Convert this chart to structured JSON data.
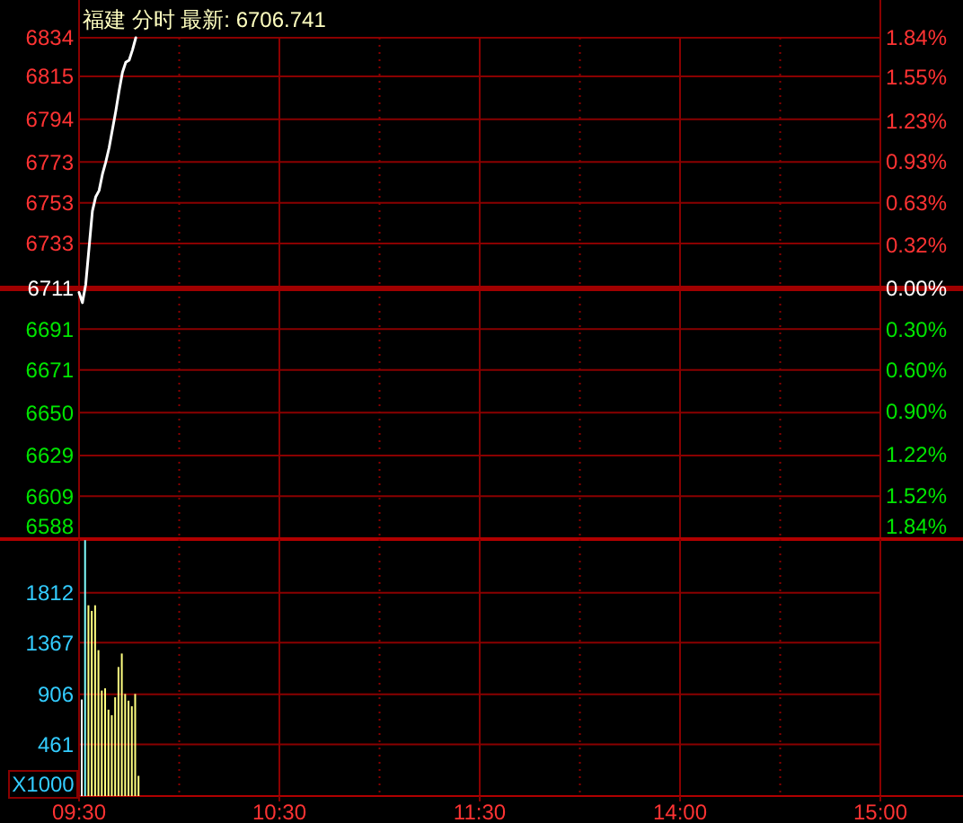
{
  "chart_data": [
    {
      "type": "line",
      "title": "福建 分时 最新: 6706.741",
      "categories": [
        null,
        null,
        null,
        null,
        null,
        null,
        null,
        null,
        null,
        null,
        null,
        null,
        null,
        null,
        null,
        null,
        null,
        null,
        null,
        null,
        null,
        null,
        null,
        null,
        null,
        null,
        null,
        null,
        null,
        null,
        null,
        null,
        null,
        null,
        null,
        null,
        null,
        null,
        null,
        null,
        null,
        null,
        null,
        null,
        null,
        null,
        null,
        null,
        null,
        null,
        null,
        null,
        null,
        null,
        null,
        null,
        null,
        null,
        null,
        null,
        null,
        null,
        null,
        null,
        null,
        null,
        null,
        null,
        null,
        null,
        null,
        null,
        null,
        null,
        null,
        null,
        null,
        null,
        null,
        null,
        null,
        null,
        null,
        null,
        null,
        null,
        null,
        null,
        null,
        null,
        null,
        null,
        null,
        null,
        null,
        null,
        null,
        null,
        null,
        null,
        null,
        null,
        null,
        null,
        null,
        null,
        null,
        null,
        null,
        null,
        null,
        null,
        null,
        null,
        null,
        null,
        null,
        null,
        null,
        null,
        null,
        null,
        null,
        null,
        null,
        null,
        null,
        null,
        null,
        null,
        null,
        null,
        null,
        null,
        null,
        null,
        null,
        null,
        null,
        null,
        null,
        null,
        null,
        null,
        null,
        null,
        null,
        null,
        null,
        null,
        null,
        null,
        null,
        null,
        null,
        null,
        null,
        null,
        null,
        null,
        null,
        null,
        null,
        null,
        null,
        null,
        null,
        null,
        null,
        null,
        null,
        null,
        null,
        null,
        null,
        null,
        null,
        null,
        null,
        null,
        null,
        null,
        null,
        null,
        null,
        null,
        null,
        null,
        null,
        null,
        null,
        null,
        null,
        null,
        null,
        null,
        null,
        null,
        null,
        null,
        null,
        null,
        null,
        null,
        null,
        null,
        null,
        null,
        null,
        null,
        null,
        null,
        null,
        null,
        null,
        null,
        null,
        null,
        null,
        null,
        null,
        null,
        null,
        null,
        null,
        null,
        null,
        null,
        null,
        null,
        null,
        null,
        null,
        null,
        null,
        null,
        null,
        null,
        null,
        null,
        null
      ],
      "series": [
        {
          "color": "#ffffff",
          "values": [
            6709,
            6704,
            6713,
            6731,
            6749,
            6756,
            6759,
            6767,
            6773,
            6780,
            6789,
            6798,
            6808,
            6817,
            6822,
            6823,
            6828,
            6834,
            null,
            null,
            null,
            null,
            null,
            null,
            null,
            null,
            null,
            null,
            null,
            null,
            null,
            null,
            null,
            null,
            null,
            null,
            null,
            null,
            null,
            null,
            null,
            null,
            null,
            null,
            null,
            null,
            null,
            null,
            null,
            null,
            null,
            null,
            null,
            null,
            null,
            null,
            null,
            null,
            null,
            null,
            null,
            null,
            null,
            null,
            null,
            null,
            null,
            null,
            null,
            null,
            null,
            null,
            null,
            null,
            null,
            null,
            null,
            null,
            null,
            null,
            null,
            null,
            null,
            null,
            null,
            null,
            null,
            null,
            null,
            null,
            null,
            null,
            null,
            null,
            null,
            null,
            null,
            null,
            null,
            null,
            null,
            null,
            null,
            null,
            null,
            null,
            null,
            null,
            null,
            null,
            null,
            null,
            null,
            null,
            null,
            null,
            null,
            null,
            null,
            null,
            null,
            null,
            null,
            null,
            null,
            null,
            null,
            null,
            null,
            null,
            null,
            null,
            null,
            null,
            null,
            null,
            null,
            null,
            null,
            null,
            null,
            null,
            null,
            null,
            null,
            null,
            null,
            null,
            null,
            null,
            null,
            null,
            null,
            null,
            null,
            null,
            null,
            null,
            null,
            null,
            null,
            null,
            null,
            null,
            null,
            null,
            null,
            null,
            null,
            null,
            null,
            null,
            null,
            null,
            null,
            null,
            null,
            null,
            null,
            null,
            null,
            null,
            null,
            null,
            null,
            null,
            null,
            null,
            null,
            null,
            null,
            null,
            null,
            null,
            null,
            null,
            null,
            null,
            null,
            null,
            null,
            null,
            null,
            null,
            null,
            null,
            null,
            null,
            null,
            null,
            null,
            null,
            null,
            null,
            null,
            null,
            null,
            null,
            null,
            null,
            null,
            null,
            null,
            null,
            null,
            null,
            null,
            null,
            null,
            null,
            null,
            null,
            null,
            null,
            null,
            null,
            null,
            null,
            null,
            null,
            null
          ]
        }
      ],
      "ylim": [
        6588,
        6834
      ],
      "yticks": [
        6588,
        6609,
        6629,
        6650,
        6671,
        6691,
        6711,
        6733,
        6753,
        6773,
        6794,
        6815,
        6834
      ],
      "y2lim": [
        -1.84,
        1.84
      ],
      "y2ticks": [
        {
          "value": -1.84,
          "label": "1.84%"
        },
        {
          "value": -1.52,
          "label": "1.52%"
        },
        {
          "value": -1.22,
          "label": "1.22%"
        },
        {
          "value": -0.9,
          "label": "0.90%"
        },
        {
          "value": -0.6,
          "label": "0.60%"
        },
        {
          "value": -0.3,
          "label": "0.30%"
        },
        {
          "value": 0,
          "label": "0.00%"
        },
        {
          "value": 0.32,
          "label": "0.32%"
        },
        {
          "value": 0.63,
          "label": "0.63%"
        },
        {
          "value": 0.93,
          "label": "0.93%"
        },
        {
          "value": 1.23,
          "label": "1.23%"
        },
        {
          "value": 1.55,
          "label": "1.55%"
        },
        {
          "value": 1.84,
          "label": "1.84%"
        }
      ],
      "ref_lines": [
        {
          "axis": "y",
          "value": 6711
        }
      ],
      "grid": true,
      "tick_labels": "y"
    },
    {
      "type": "bar",
      "categories": [
        "09:30",
        null,
        null,
        null,
        null,
        null,
        null,
        null,
        null,
        null,
        null,
        null,
        null,
        null,
        null,
        null,
        null,
        null,
        null,
        null,
        null,
        null,
        null,
        null,
        null,
        null,
        null,
        null,
        null,
        null,
        null,
        null,
        null,
        null,
        null,
        null,
        null,
        null,
        null,
        null,
        null,
        null,
        null,
        null,
        null,
        null,
        null,
        null,
        null,
        null,
        null,
        null,
        null,
        null,
        null,
        null,
        null,
        null,
        null,
        null,
        "10:30",
        null,
        null,
        null,
        null,
        null,
        null,
        null,
        null,
        null,
        null,
        null,
        null,
        null,
        null,
        null,
        null,
        null,
        null,
        null,
        null,
        null,
        null,
        null,
        null,
        null,
        null,
        null,
        null,
        null,
        null,
        null,
        null,
        null,
        null,
        null,
        null,
        null,
        null,
        null,
        null,
        null,
        null,
        null,
        null,
        null,
        null,
        null,
        null,
        null,
        null,
        null,
        null,
        null,
        null,
        null,
        null,
        null,
        null,
        null,
        "11:30",
        null,
        null,
        null,
        null,
        null,
        null,
        null,
        null,
        null,
        null,
        null,
        null,
        null,
        null,
        null,
        null,
        null,
        null,
        null,
        null,
        null,
        null,
        null,
        null,
        null,
        null,
        null,
        null,
        null,
        null,
        null,
        null,
        null,
        null,
        null,
        null,
        null,
        null,
        null,
        null,
        null,
        null,
        null,
        null,
        null,
        null,
        null,
        null,
        null,
        null,
        null,
        null,
        null,
        null,
        null,
        null,
        null,
        null,
        null,
        "14:00",
        null,
        null,
        null,
        null,
        null,
        null,
        null,
        null,
        null,
        null,
        null,
        null,
        null,
        null,
        null,
        null,
        null,
        null,
        null,
        null,
        null,
        null,
        null,
        null,
        null,
        null,
        null,
        null,
        null,
        null,
        null,
        null,
        null,
        null,
        null,
        null,
        null,
        null,
        null,
        null,
        null,
        null,
        null,
        null,
        null,
        null,
        null,
        null,
        null,
        null,
        null,
        null,
        null,
        null,
        null,
        null,
        null,
        null,
        null,
        "15:00"
      ],
      "values": [
        860,
        2280,
        1700,
        1650,
        1700,
        1300,
        940,
        960,
        770,
        720,
        880,
        1150,
        1270,
        910,
        850,
        800,
        910,
        180,
        null,
        null,
        null,
        null,
        null,
        null,
        null,
        null,
        null,
        null,
        null,
        null,
        null,
        null,
        null,
        null,
        null,
        null,
        null,
        null,
        null,
        null,
        null,
        null,
        null,
        null,
        null,
        null,
        null,
        null,
        null,
        null,
        null,
        null,
        null,
        null,
        null,
        null,
        null,
        null,
        null,
        null,
        null,
        null,
        null,
        null,
        null,
        null,
        null,
        null,
        null,
        null,
        null,
        null,
        null,
        null,
        null,
        null,
        null,
        null,
        null,
        null,
        null,
        null,
        null,
        null,
        null,
        null,
        null,
        null,
        null,
        null,
        null,
        null,
        null,
        null,
        null,
        null,
        null,
        null,
        null,
        null,
        null,
        null,
        null,
        null,
        null,
        null,
        null,
        null,
        null,
        null,
        null,
        null,
        null,
        null,
        null,
        null,
        null,
        null,
        null,
        null,
        null,
        null,
        null,
        null,
        null,
        null,
        null,
        null,
        null,
        null,
        null,
        null,
        null,
        null,
        null,
        null,
        null,
        null,
        null,
        null,
        null,
        null,
        null,
        null,
        null,
        null,
        null,
        null,
        null,
        null,
        null,
        null,
        null,
        null,
        null,
        null,
        null,
        null,
        null,
        null,
        null,
        null,
        null,
        null,
        null,
        null,
        null,
        null,
        null,
        null,
        null,
        null,
        null,
        null,
        null,
        null,
        null,
        null,
        null,
        null,
        null,
        null,
        null,
        null,
        null,
        null,
        null,
        null,
        null,
        null,
        null,
        null,
        null,
        null,
        null,
        null,
        null,
        null,
        null,
        null,
        null,
        null,
        null,
        null,
        null,
        null,
        null,
        null,
        null,
        null,
        null,
        null,
        null,
        null,
        null,
        null,
        null,
        null,
        null,
        null,
        null,
        null,
        null,
        null,
        null,
        null,
        null,
        null,
        null,
        null,
        null,
        null,
        null,
        null,
        null,
        null,
        null,
        null,
        null,
        null,
        null
      ],
      "colors": [
        "#ffffff",
        "#80ffff",
        "#ffff80",
        "#ffff80",
        "#ffff80",
        "#ffff80",
        "#ffff80",
        "#ffff80",
        "#ffff80",
        "#ffff80",
        "#ffff80",
        "#ffff80",
        "#ffff80",
        "#ffff80",
        "#ffff80",
        "#ffff80",
        "#ffff80",
        "#ffff80",
        null,
        null,
        null,
        null,
        null,
        null,
        null,
        null,
        null,
        null,
        null,
        null,
        null,
        null,
        null,
        null,
        null,
        null,
        null,
        null,
        null,
        null,
        null,
        null,
        null,
        null,
        null,
        null,
        null,
        null,
        null,
        null,
        null,
        null,
        null,
        null,
        null,
        null,
        null,
        null,
        null,
        null,
        null,
        null,
        null,
        null,
        null,
        null,
        null,
        null,
        null,
        null,
        null,
        null,
        null,
        null,
        null,
        null,
        null,
        null,
        null,
        null,
        null,
        null,
        null,
        null,
        null,
        null,
        null,
        null,
        null,
        null,
        null,
        null,
        null,
        null,
        null,
        null,
        null,
        null,
        null,
        null,
        null,
        null,
        null,
        null,
        null,
        null,
        null,
        null,
        null,
        null,
        null,
        null,
        null,
        null,
        null,
        null,
        null,
        null,
        null,
        null,
        null,
        null,
        null,
        null,
        null,
        null,
        null,
        null,
        null,
        null,
        null,
        null,
        null,
        null,
        null,
        null,
        null,
        null,
        null,
        null,
        null,
        null,
        null,
        null,
        null,
        null,
        null,
        null,
        null,
        null,
        null,
        null,
        null,
        null,
        null,
        null,
        null,
        null,
        null,
        null,
        null,
        null,
        null,
        null,
        null,
        null,
        null,
        null,
        null,
        null,
        null,
        null,
        null,
        null,
        null,
        null,
        null,
        null,
        null,
        null,
        null,
        null,
        null,
        null,
        null,
        null,
        null,
        null,
        null,
        null,
        null,
        null,
        null,
        null,
        null,
        null,
        null,
        null,
        null,
        null,
        null,
        null,
        null,
        null,
        null,
        null,
        null,
        null,
        null,
        null,
        null,
        null,
        null,
        null,
        null,
        null,
        null,
        null,
        null,
        null,
        null,
        null,
        null,
        null,
        null,
        null,
        null,
        null,
        null,
        null,
        null,
        null,
        null,
        null,
        null,
        null,
        null,
        null,
        null,
        null,
        null
      ],
      "ylim": [
        0,
        2290
      ],
      "yticks": [
        461,
        906,
        1367,
        1812
      ],
      "ylabel": "X1000",
      "grid": true
    }
  ]
}
